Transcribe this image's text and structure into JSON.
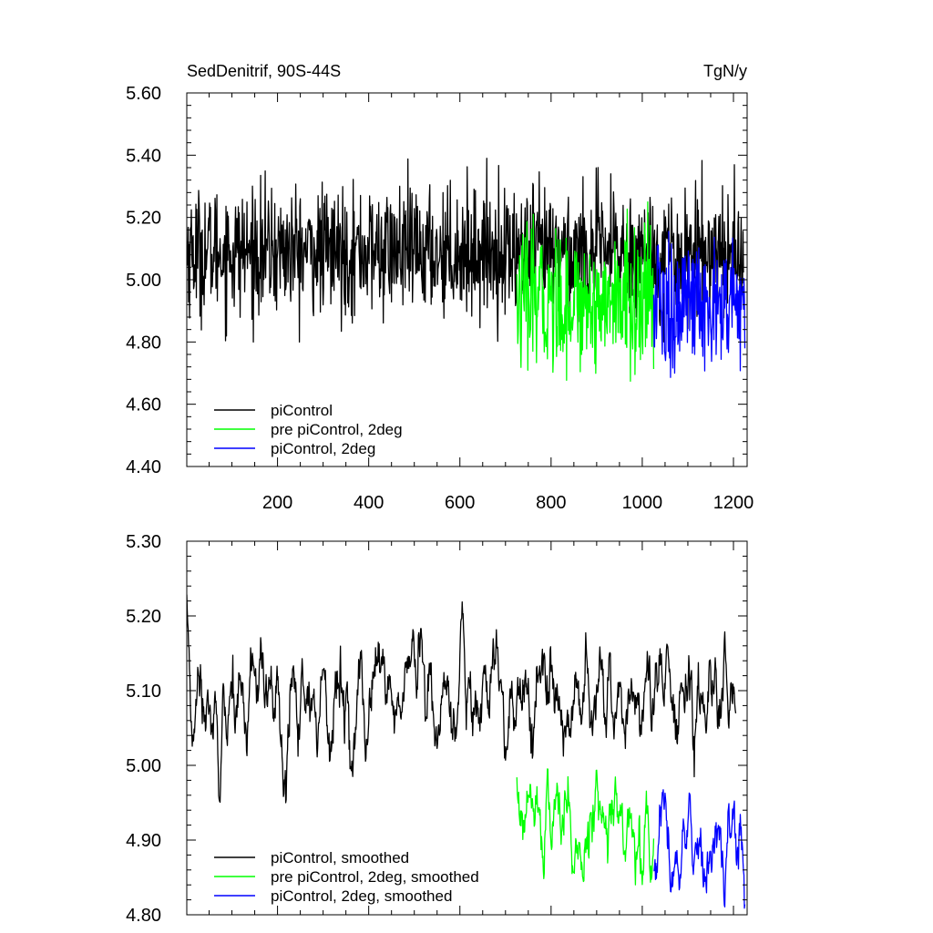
{
  "chart_data": [
    {
      "type": "line",
      "title_left": "SedDenitrif, 90S-44S",
      "title_right": "TgN/y",
      "xlim": [
        1,
        1230
      ],
      "ylim": [
        4.4,
        5.6
      ],
      "xticks": [
        200,
        400,
        600,
        800,
        1000,
        1200
      ],
      "xtick_labels": [
        "200",
        "400",
        "600",
        "800",
        "1000",
        "1200"
      ],
      "yticks": [
        4.4,
        4.6,
        4.8,
        5.0,
        5.2,
        5.4,
        5.6
      ],
      "ytick_labels": [
        "4.40",
        "4.60",
        "4.80",
        "5.00",
        "5.20",
        "5.40",
        "5.60"
      ],
      "grid": false,
      "legend_position": "bottom-left",
      "series": [
        {
          "name": "piControl",
          "color": "#000000",
          "x_range": [
            1,
            1222
          ],
          "mean": 5.09,
          "spread": 0.1,
          "min": 4.8,
          "max": 5.47
        },
        {
          "name": "pre piControl, 2deg",
          "color": "#00ff00",
          "x_range": [
            725,
            1025
          ],
          "mean": 4.93,
          "spread": 0.11,
          "min": 4.59,
          "max": 5.25
        },
        {
          "name": "piControl, 2deg",
          "color": "#0000ff",
          "x_range": [
            1025,
            1225
          ],
          "mean": 4.91,
          "spread": 0.11,
          "min": 4.62,
          "max": 5.24
        }
      ]
    },
    {
      "type": "line",
      "xlim": [
        1,
        1230
      ],
      "ylim": [
        4.8,
        5.3
      ],
      "xticks": [
        200,
        400,
        600,
        800,
        1000,
        1200
      ],
      "yticks": [
        4.8,
        4.9,
        5.0,
        5.1,
        5.2,
        5.3
      ],
      "ytick_labels": [
        "4.80",
        "4.90",
        "5.00",
        "5.10",
        "5.20",
        "5.30"
      ],
      "grid": false,
      "legend_position": "bottom-left",
      "series": [
        {
          "name": "piControl, smoothed",
          "color": "#000000",
          "x_range": [
            1,
            1205
          ],
          "mean": 5.09,
          "spread": 0.04,
          "min": 4.95,
          "max": 5.27
        },
        {
          "name": "pre piControl, 2deg, smoothed",
          "color": "#00ff00",
          "x_range": [
            725,
            1025
          ],
          "mean": 4.92,
          "spread": 0.035,
          "min": 4.8,
          "max": 5.01
        },
        {
          "name": "piControl, 2deg, smoothed",
          "color": "#0000ff",
          "x_range": [
            1025,
            1225
          ],
          "mean": 4.89,
          "spread": 0.035,
          "min": 4.8,
          "max": 5.03
        }
      ]
    }
  ]
}
